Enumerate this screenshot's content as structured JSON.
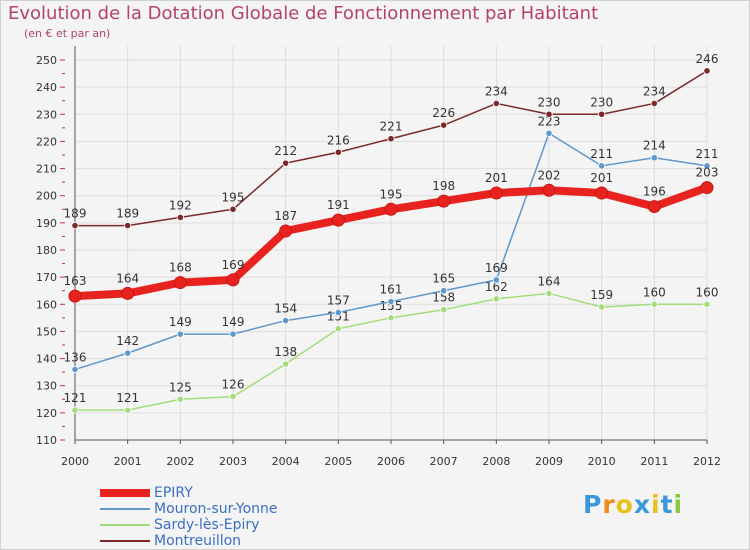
{
  "header": {
    "title": "Evolution de la Dotation Globale de Fonctionnement par Habitant",
    "subtitle": "(en € et par an)"
  },
  "logo": {
    "text": "Proxiti",
    "letter_colors": [
      "#3a9ad9",
      "#f08a1c",
      "#e6c21a",
      "#3a9ad9",
      "#e6c21a",
      "#3a9ad9",
      "#8cc63f"
    ]
  },
  "colors": {
    "title": "#b4436c",
    "axis": "#333333",
    "grid": "#dddddd",
    "legend_text": "#3b6fc2",
    "point_label": "#333333"
  },
  "chart_data": {
    "type": "line",
    "title": "Evolution de la Dotation Globale de Fonctionnement par Habitant",
    "subtitle": "(en € et par an)",
    "xlabel": "",
    "ylabel": "",
    "x": [
      "2000",
      "2001",
      "2002",
      "2003",
      "2004",
      "2005",
      "2006",
      "2007",
      "2008",
      "2009",
      "2010",
      "2011",
      "2012"
    ],
    "yticks": [
      110,
      120,
      130,
      140,
      150,
      160,
      170,
      180,
      190,
      200,
      210,
      220,
      230,
      240,
      250
    ],
    "ylim": [
      110,
      250
    ],
    "grid": true,
    "legend_position": "bottom-left",
    "series": [
      {
        "name": "EPIRY",
        "color": "#e8231f",
        "values": [
          163,
          164,
          168,
          169,
          187,
          191,
          195,
          198,
          201,
          202,
          201,
          196,
          203
        ]
      },
      {
        "name": "Mouron-sur-Yonne",
        "color": "#5e98cc",
        "values": [
          136,
          142,
          149,
          149,
          154,
          157,
          161,
          165,
          169,
          223,
          211,
          214,
          211
        ]
      },
      {
        "name": "Sardy-lès-Epiry",
        "color": "#a4dc7c",
        "values": [
          121,
          121,
          125,
          126,
          138,
          151,
          155,
          158,
          162,
          164,
          159,
          160,
          160
        ]
      },
      {
        "name": "Montreuillon",
        "color": "#7a2a2a",
        "values": [
          189,
          189,
          192,
          195,
          212,
          216,
          221,
          226,
          234,
          230,
          230,
          234,
          246
        ]
      }
    ]
  }
}
